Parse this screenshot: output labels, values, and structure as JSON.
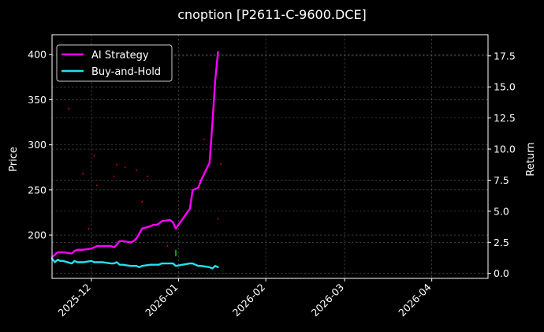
{
  "chart_data": {
    "type": "line",
    "title": "cnoption [P2611-C-9600.DCE]",
    "xlabel": "",
    "ylabel_left": "Price",
    "ylabel_right": "Return",
    "grid": true,
    "legend_position": "top-left",
    "x_ticks": [
      "2025-12",
      "2026-01",
      "2026-02",
      "2026-03",
      "2026-04"
    ],
    "xlim": [
      "2025-11-17",
      "2026-04-21"
    ],
    "y_left": {
      "lim": [
        152,
        422
      ],
      "ticks": [
        200,
        250,
        300,
        350,
        400
      ]
    },
    "y_right": {
      "lim": [
        -0.4,
        19.2
      ],
      "ticks": [
        0.0,
        2.5,
        5.0,
        7.5,
        10.0,
        12.5,
        15.0,
        17.5
      ]
    },
    "series": [
      {
        "name": "AI Strategy",
        "axis": "right",
        "color": "#ff00ff",
        "x": [
          "2025-11-17",
          "2025-11-18",
          "2025-11-19",
          "2025-11-20",
          "2025-11-21",
          "2025-11-24",
          "2025-11-25",
          "2025-11-26",
          "2025-11-27",
          "2025-11-28",
          "2025-12-01",
          "2025-12-02",
          "2025-12-03",
          "2025-12-04",
          "2025-12-05",
          "2025-12-08",
          "2025-12-09",
          "2025-12-10",
          "2025-12-11",
          "2025-12-12",
          "2025-12-15",
          "2025-12-16",
          "2025-12-17",
          "2025-12-18",
          "2025-12-19",
          "2025-12-22",
          "2025-12-23",
          "2025-12-24",
          "2025-12-25",
          "2025-12-26",
          "2025-12-29",
          "2025-12-30",
          "2025-12-31",
          "2026-01-05",
          "2026-01-06",
          "2026-01-07",
          "2026-01-08",
          "2026-01-09",
          "2026-01-12",
          "2026-01-13",
          "2026-01-14",
          "2026-01-15"
        ],
        "values": [
          1.3,
          1.5,
          1.7,
          1.7,
          1.7,
          1.6,
          1.8,
          1.9,
          1.9,
          1.9,
          2.0,
          2.1,
          2.2,
          2.2,
          2.2,
          2.2,
          2.1,
          2.3,
          2.6,
          2.6,
          2.5,
          2.6,
          2.8,
          3.2,
          3.6,
          3.8,
          3.9,
          3.9,
          4.0,
          4.2,
          4.3,
          4.1,
          3.6,
          5.2,
          6.7,
          6.8,
          6.9,
          7.5,
          8.9,
          12.0,
          15.5,
          17.8
        ]
      },
      {
        "name": "Buy-and-Hold",
        "axis": "right",
        "color": "#22e1f0",
        "x": [
          "2025-11-17",
          "2025-11-18",
          "2025-11-19",
          "2025-11-20",
          "2025-11-21",
          "2025-11-24",
          "2025-11-25",
          "2025-11-26",
          "2025-11-27",
          "2025-11-28",
          "2025-12-01",
          "2025-12-02",
          "2025-12-03",
          "2025-12-04",
          "2025-12-05",
          "2025-12-08",
          "2025-12-09",
          "2025-12-10",
          "2025-12-11",
          "2025-12-12",
          "2025-12-15",
          "2025-12-16",
          "2025-12-17",
          "2025-12-18",
          "2025-12-19",
          "2025-12-22",
          "2025-12-23",
          "2025-12-24",
          "2025-12-25",
          "2025-12-26",
          "2025-12-29",
          "2025-12-30",
          "2025-12-31",
          "2026-01-05",
          "2026-01-06",
          "2026-01-07",
          "2026-01-08",
          "2026-01-09",
          "2026-01-12",
          "2026-01-13",
          "2026-01-14",
          "2026-01-15"
        ],
        "values": [
          1.2,
          0.9,
          1.1,
          1.0,
          1.0,
          0.8,
          1.0,
          0.9,
          0.9,
          0.9,
          1.0,
          0.9,
          0.9,
          0.9,
          0.9,
          0.8,
          0.8,
          0.9,
          0.7,
          0.7,
          0.6,
          0.6,
          0.6,
          0.5,
          0.6,
          0.7,
          0.7,
          0.7,
          0.7,
          0.8,
          0.8,
          0.8,
          0.6,
          0.8,
          0.8,
          0.7,
          0.6,
          0.6,
          0.5,
          0.4,
          0.6,
          0.5
        ]
      }
    ],
    "price_markers": {
      "axis": "left",
      "items": [
        {
          "date": "2025-11-23",
          "price": 340,
          "color": "#cc0000"
        },
        {
          "date": "2025-11-28",
          "price": 268,
          "color": "#cc0000"
        },
        {
          "date": "2025-11-30",
          "price": 207,
          "color": "#cc0000"
        },
        {
          "date": "2025-12-02",
          "price": 288,
          "color": "#cc0000"
        },
        {
          "date": "2025-12-03",
          "price": 255,
          "color": "#cc0000"
        },
        {
          "date": "2025-12-09",
          "price": 265,
          "color": "#cc0000"
        },
        {
          "date": "2025-12-10",
          "price": 278,
          "color": "#cc0000"
        },
        {
          "date": "2025-12-13",
          "price": 275,
          "color": "#cc0000"
        },
        {
          "date": "2025-12-17",
          "price": 272,
          "color": "#cc0000"
        },
        {
          "date": "2025-12-19",
          "price": 237,
          "color": "#cc0000"
        },
        {
          "date": "2025-12-21",
          "price": 265,
          "color": "#cc0000"
        },
        {
          "date": "2025-12-28",
          "price": 188,
          "color": "#cc0000"
        },
        {
          "date": "2026-01-10",
          "price": 306,
          "color": "#cc0000"
        },
        {
          "date": "2026-01-15",
          "price": 218,
          "color": "#cc0000"
        },
        {
          "date": "2026-01-16",
          "price": 279,
          "color": "#cc0000"
        },
        {
          "date": "2025-12-31",
          "price": 180,
          "color": "#00cc00"
        }
      ]
    }
  }
}
